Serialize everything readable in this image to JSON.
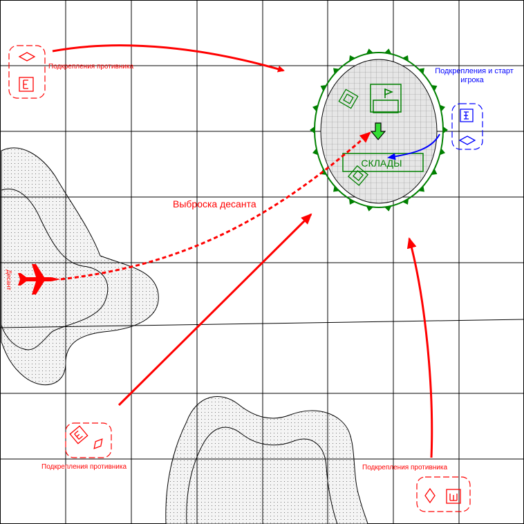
{
  "map": {
    "grid": true,
    "colors": {
      "enemy": "#ff0000",
      "player": "#0000ff",
      "base": "#008000",
      "base_fill": "#e6e6e6",
      "grid": "#000000",
      "terrain_fill": "#f4f4f4",
      "drop_marker": "#33dd33"
    },
    "labels": {
      "enemy_reinforcements_top_left": "Подкрепления противника",
      "enemy_reinforcements_bottom_left": "Подкрепления противника",
      "enemy_reinforcements_bottom_right": "Подкрепления противника",
      "player_start_line1": "Подкрепления и старт",
      "player_start_line2": "игрока",
      "drop_route": "Выброска десанта",
      "landing_party": "Десант",
      "warehouse": "СКЛАДЫ"
    },
    "icons": {
      "aircraft": "airplane-icon",
      "drop_point": "down-arrow-icon",
      "headquarters": "flag-icon",
      "enemy_unit": "unit-diamond-icon",
      "enemy_building": "building-icon"
    }
  }
}
